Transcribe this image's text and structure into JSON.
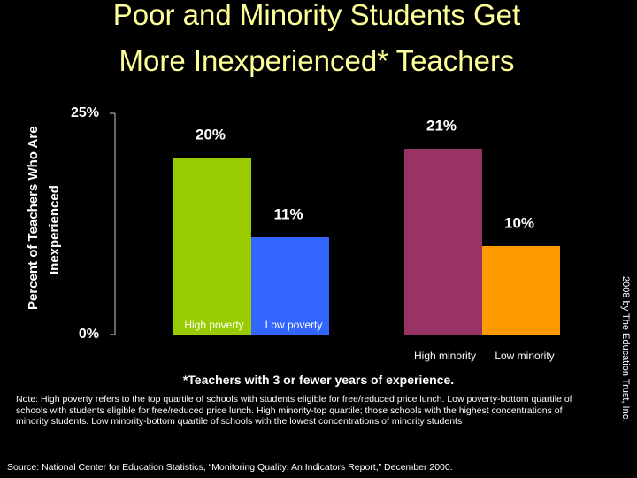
{
  "chart_data": {
    "type": "bar",
    "title": [
      "Poor and Minority Students Get",
      "More Inexperienced* Teachers"
    ],
    "y_label": [
      "Percent of Teachers Who Are",
      "Inexperienced"
    ],
    "categories": [
      "High poverty",
      "Low poverty",
      "High minority",
      "Low minority"
    ],
    "values": [
      20,
      11,
      21,
      10
    ],
    "value_labels": [
      "20%",
      "11%",
      "21%",
      "10%"
    ],
    "colors": [
      "#99cc00",
      "#3366ff",
      "#993366",
      "#ff9900"
    ],
    "ylim": [
      0,
      25
    ],
    "yticks": [
      {
        "value": 0,
        "label": "0%"
      },
      {
        "value": 25,
        "label": "25%"
      }
    ],
    "footnote": "*Teachers with 3 or fewer years of experience.",
    "note": "Note: High poverty refers to the top quartile of schools with students eligible for free/reduced price lunch. Low poverty-bottom quartile of schools with students eligible for free/reduced price lunch. High minority-top quartile; those schools with the highest concentrations of minority students.  Low minority-bottom quartile of schools with the lowest concentrations of minority students",
    "source": "Source: National Center for Education Statistics, “Monitoring Quality: An Indicators Report,” December 2000.",
    "credit": "2008 by The Education Trust, Inc."
  }
}
